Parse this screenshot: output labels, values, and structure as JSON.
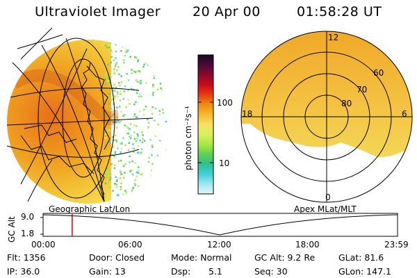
{
  "header": {
    "instrument": "Ultraviolet Imager",
    "date": "20 Apr 00",
    "time": "01:58:28 UT"
  },
  "colorbar": {
    "unit_label": "photon cm⁻²s⁻¹",
    "ticks": [
      "100",
      "10"
    ],
    "colors": [
      "#1a0a1a",
      "#4a0a3a",
      "#8a0a2a",
      "#c80a1a",
      "#e83a10",
      "#f08c10",
      "#f8b830",
      "#f8e060",
      "#d8f060",
      "#a8e840",
      "#60d050",
      "#30c090",
      "#40d0d8",
      "#a0e8f0",
      "#e8f4f8"
    ]
  },
  "left_map": {
    "label": "Geographic Lat/Lon"
  },
  "right_map": {
    "label": "Apex MLat/MLT",
    "mlt_labels": {
      "top": "12",
      "left": "18",
      "right": "6",
      "bottom": "0"
    },
    "lat_labels": [
      "60",
      "70",
      "80"
    ]
  },
  "altitude_plot": {
    "ylabel": "GC Alt",
    "yticks": [
      "9.0",
      "1.8"
    ],
    "xticks": [
      "00:00",
      "06:00",
      "12:00",
      "18:00",
      "23:59"
    ],
    "marker_color": "#e00000",
    "marker_time_hours": 1.97
  },
  "info": {
    "flt": "Flt: 1356",
    "ip": "IP: 36.0",
    "door": "Door: Closed",
    "gain": "Gain: 13",
    "mode": "Mode: Normal",
    "dsp_label": "Dsp:",
    "dsp_value": "5.1",
    "gcalt": "GC Alt: 9.2 Re",
    "seq": "Seq: 30",
    "glat": "GLat: 81.6",
    "glon": "GLon: 147.1"
  }
}
